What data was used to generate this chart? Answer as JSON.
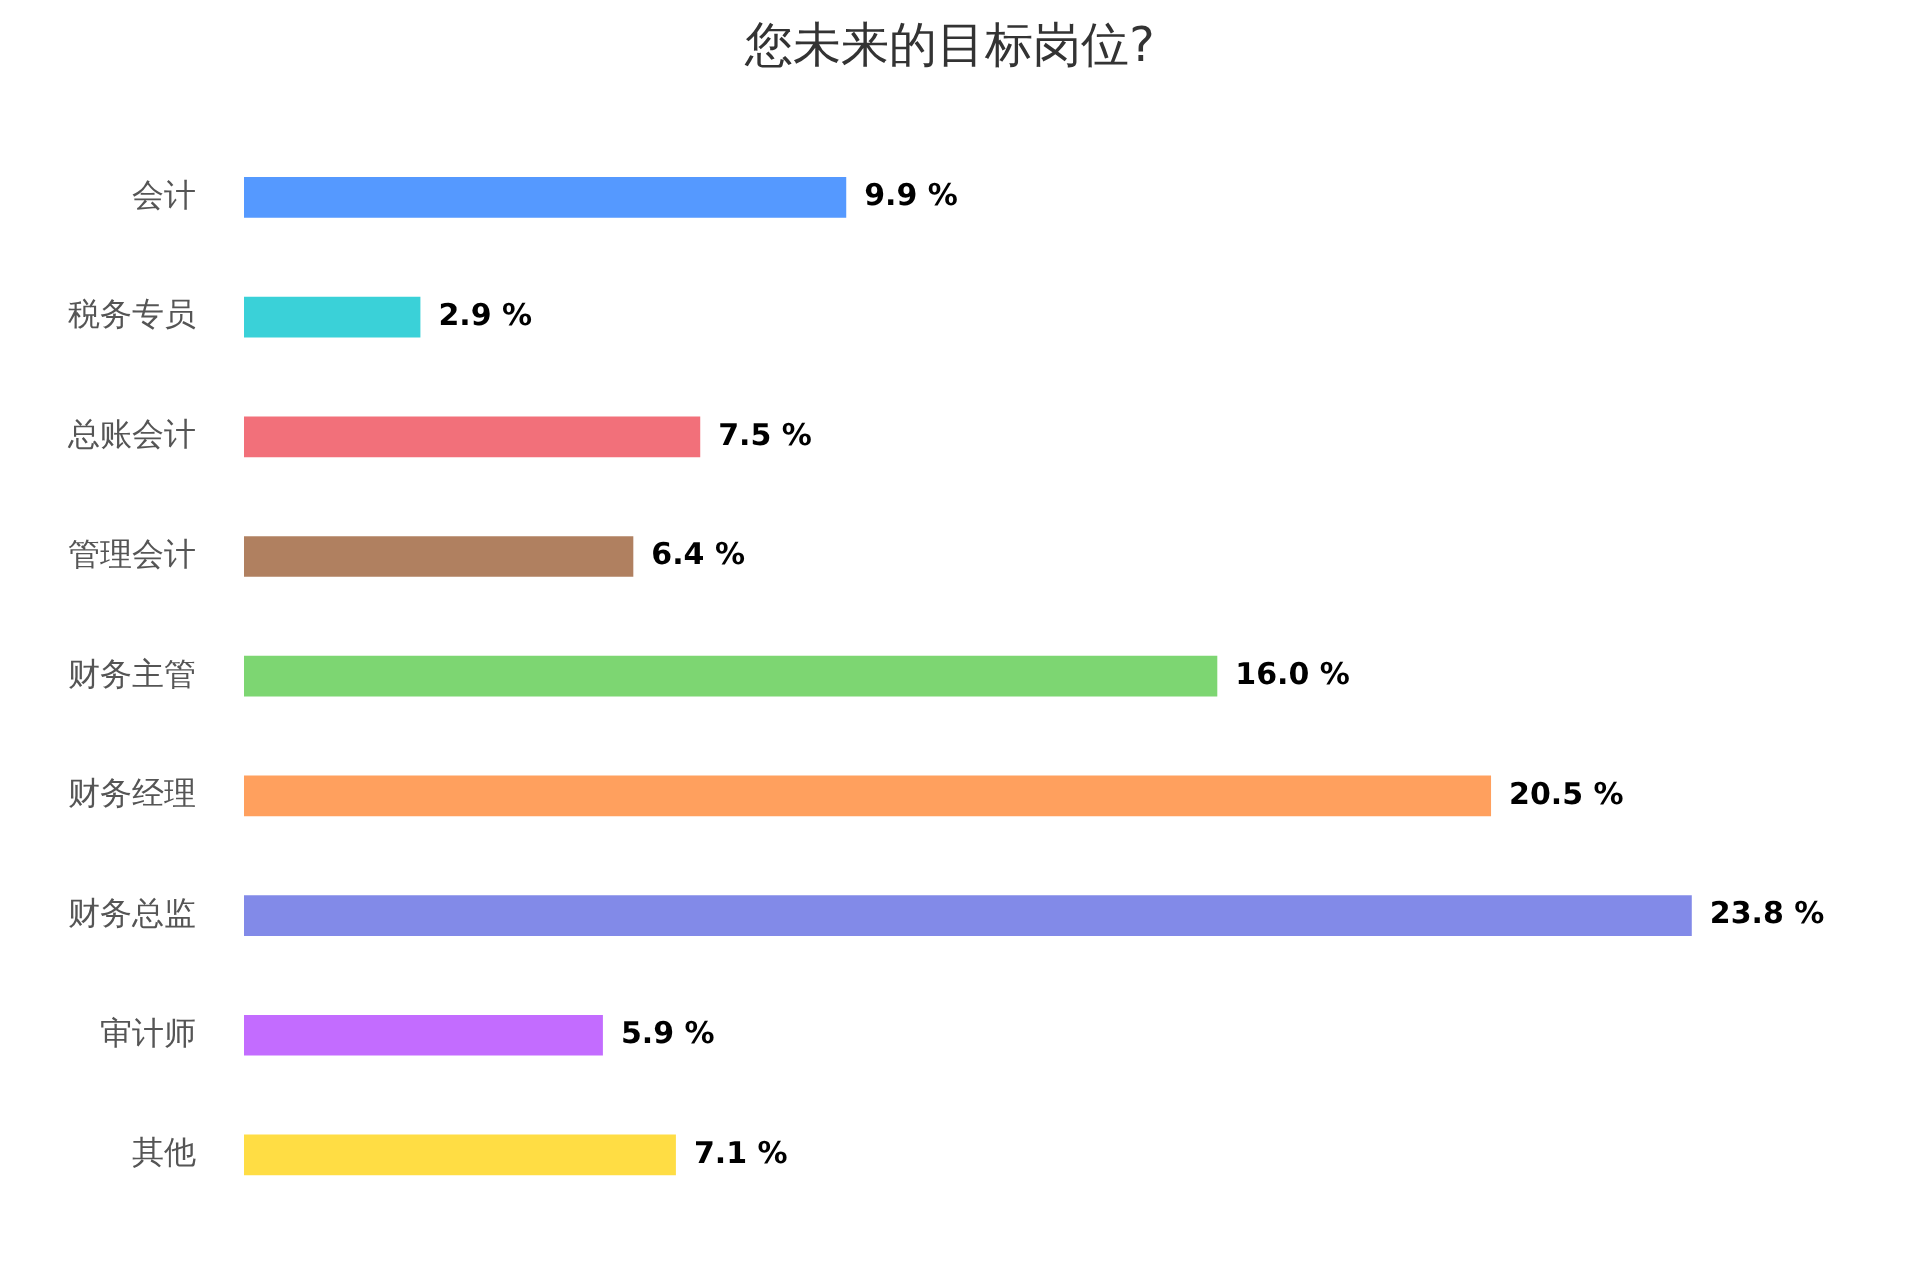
{
  "chart_data": {
    "type": "bar",
    "orientation": "horizontal",
    "title": "您未来的目标岗位?",
    "categories": [
      "会计",
      "税务专员",
      "总账会计",
      "管理会计",
      "财务主管",
      "财务经理",
      "财务总监",
      "审计师",
      "其他"
    ],
    "values": [
      9.9,
      2.9,
      7.5,
      6.4,
      16.0,
      20.5,
      23.8,
      5.9,
      7.1
    ],
    "colors": [
      "#5599ff",
      "#3ad1d8",
      "#f2707a",
      "#b08060",
      "#7dd672",
      "#ffa05e",
      "#828ae8",
      "#c36cff",
      "#ffdd44"
    ],
    "value_labels": [
      "9.9 %",
      "2.9 %",
      "7.5 %",
      "6.4 %",
      "16.0 %",
      "20.5 %",
      "23.8 %",
      "5.9 %",
      "7.1 %"
    ],
    "legend": false
  }
}
